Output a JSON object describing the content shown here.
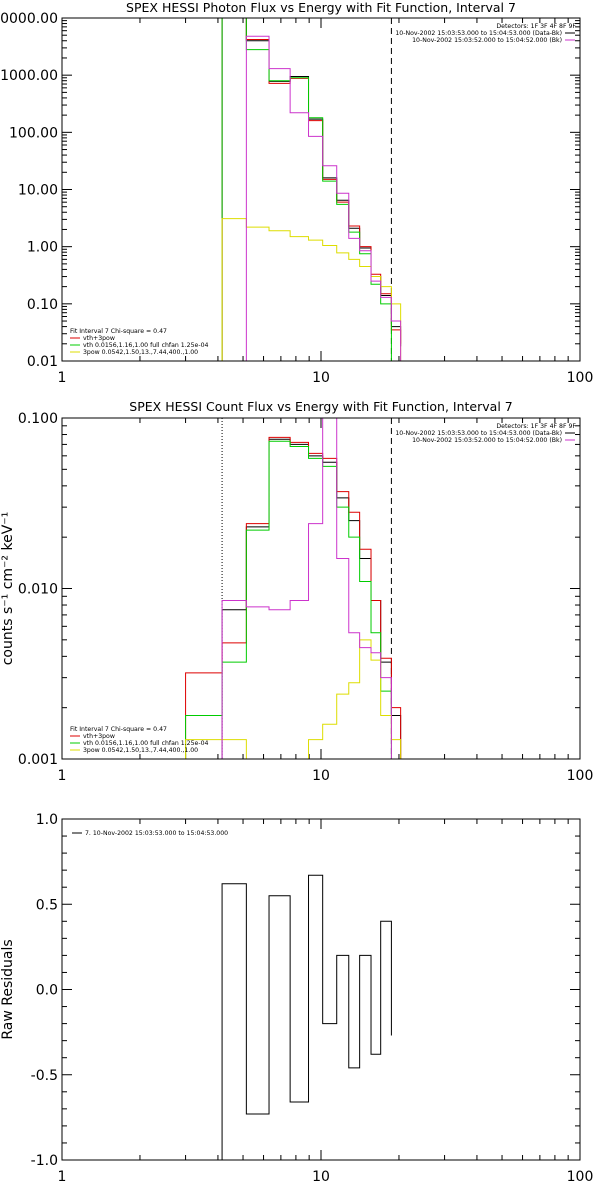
{
  "chart_data": [
    {
      "id": "photon",
      "type": "line",
      "title": "SPEX HESSI Photon Flux vs Energy with Fit Function, Interval 7",
      "xlog": true,
      "ylog": true,
      "xlim": [
        1,
        100
      ],
      "ylim": [
        0.01,
        10000
      ],
      "x_ticks": [
        "1",
        "10",
        "100"
      ],
      "y_ticks": [
        "0.01",
        "0.10",
        "1.00",
        "10.00",
        "100.00",
        "1000.00",
        "10000.00"
      ],
      "y_tick_values": [
        0.01,
        0.1,
        1,
        10,
        100,
        1000,
        10000
      ],
      "detectors_label": "Detectors: 1F 3F 4F 8F 9F",
      "legend_top": [
        {
          "text": "10-Nov-2002 15:03:53.000 to 15:04:53.000 (Data-Bk)",
          "color": "#000000"
        },
        {
          "text": "10-Nov-2002 15:03:52.000 to 15:04:52.000 (Bk)",
          "color": "#cc33cc"
        }
      ],
      "legend_bottom_title": "Fit Interval 7   Chi-square = 0.47",
      "legend_bottom": [
        {
          "text": "vth+3pow",
          "color": "#dd0000"
        },
        {
          "text": "vth 0.0156,1.16,1.00  full chfan 1.25e-04",
          "color": "#00cc00"
        },
        {
          "text": "3pow 0.0542,1.50,13.,7.44,400.,1.00",
          "color": "#dddd00"
        }
      ],
      "vlines": [
        {
          "x": 4.15,
          "style": "solid",
          "color": "#cc33cc"
        },
        {
          "x": 18.7,
          "style": "dashed",
          "color": "#000000"
        }
      ],
      "bin_edges": [
        3.0,
        4.15,
        5.15,
        6.3,
        7.6,
        8.95,
        10.15,
        11.5,
        12.8,
        14.1,
        15.6,
        17.0,
        18.7,
        20.3
      ],
      "series": [
        {
          "name": "Data-Bk",
          "color": "#000000",
          "values": [
            null,
            10000,
            4000,
            780,
            950,
            170,
            16,
            6.5,
            2.1,
            0.95,
            0.3,
            0.14,
            0.04,
            0.018
          ]
        },
        {
          "name": "vth+3pow",
          "color": "#dd0000",
          "values": [
            null,
            10000,
            4200,
            720,
            880,
            160,
            15,
            6.0,
            2.3,
            1.0,
            0.33,
            0.15,
            0.035,
            0.02
          ]
        },
        {
          "name": "vth",
          "color": "#00cc00",
          "values": [
            null,
            10000,
            2800,
            800,
            900,
            180,
            14,
            5.5,
            1.8,
            0.75,
            0.22,
            0.1,
            0.008,
            0.008
          ]
        },
        {
          "name": "3pow",
          "color": "#dddd00",
          "values": [
            null,
            3.1,
            2.2,
            1.9,
            1.5,
            1.3,
            1.05,
            0.78,
            0.6,
            0.45,
            0.3,
            0.2,
            0.1,
            null
          ]
        },
        {
          "name": "Bk",
          "color": "#cc33cc",
          "values": [
            null,
            null,
            4800,
            1300,
            220,
            85,
            26,
            8.6,
            1.4,
            0.85,
            0.25,
            0.13,
            0.05,
            null
          ]
        }
      ]
    },
    {
      "id": "count",
      "type": "line",
      "title": "SPEX HESSI Count Flux vs Energy with Fit Function, Interval 7",
      "ylabel": "counts s⁻¹ cm⁻² keV⁻¹",
      "xlog": true,
      "ylog": true,
      "xlim": [
        1,
        100
      ],
      "ylim": [
        0.001,
        0.1
      ],
      "x_ticks": [
        "1",
        "10",
        "100"
      ],
      "y_ticks": [
        "0.001",
        "0.010",
        "0.100"
      ],
      "y_tick_values": [
        0.001,
        0.01,
        0.1
      ],
      "detectors_label": "Detectors: 1F 3F 4F 8F 9F",
      "legend_top": [
        {
          "text": "10-Nov-2002 15:03:53.000 to 15:04:53.000 (Data-Bk)",
          "color": "#000000"
        },
        {
          "text": "10-Nov-2002 15:03:52.000 to 15:04:52.000 (Bk)",
          "color": "#cc33cc"
        }
      ],
      "legend_bottom_title": "Fit Interval 7   Chi-square = 0.47",
      "legend_bottom": [
        {
          "text": "vth+3pow",
          "color": "#dd0000"
        },
        {
          "text": "vth 0.0156,1.16,1.00  full chfan 1.25e-04",
          "color": "#00cc00"
        },
        {
          "text": "3pow 0.0542,1.50,13.,7.44,400.,1.00",
          "color": "#dddd00"
        }
      ],
      "vlines": [
        {
          "x": 4.15,
          "style": "dotted",
          "color": "#000000"
        },
        {
          "x": 18.7,
          "style": "dashed",
          "color": "#000000"
        }
      ],
      "bin_edges": [
        3.0,
        4.15,
        5.15,
        6.3,
        7.6,
        8.95,
        10.15,
        11.5,
        12.8,
        14.1,
        15.6,
        17.0,
        18.7,
        20.3
      ],
      "series": [
        {
          "name": "Data-Bk",
          "color": "#000000",
          "values": [
            null,
            0.0075,
            0.023,
            0.075,
            0.07,
            0.06,
            0.055,
            0.034,
            0.025,
            0.015,
            0.0085,
            0.0037,
            0.0018,
            null
          ]
        },
        {
          "name": "vth+3pow",
          "color": "#dd0000",
          "values": [
            0.0032,
            0.0048,
            0.024,
            0.077,
            0.072,
            0.062,
            0.058,
            0.037,
            0.028,
            0.017,
            0.0085,
            0.0039,
            0.002,
            null
          ]
        },
        {
          "name": "vth",
          "color": "#00cc00",
          "values": [
            0.0018,
            0.0037,
            0.022,
            0.073,
            0.068,
            0.058,
            0.052,
            0.03,
            0.02,
            0.011,
            0.0055,
            0.0025,
            0.001,
            null
          ]
        },
        {
          "name": "3pow",
          "color": "#dddd00",
          "values": [
            0.0013,
            0.0013,
            0.001,
            0.001,
            0.001,
            0.0013,
            0.0016,
            0.0024,
            0.0028,
            0.005,
            0.0038,
            0.0018,
            0.0013,
            null
          ]
        },
        {
          "name": "Bk",
          "color": "#cc33cc",
          "values": [
            null,
            0.0085,
            0.0078,
            0.0075,
            0.0085,
            0.024,
            0.1,
            0.015,
            0.0055,
            0.0045,
            0.0042,
            0.003,
            null,
            null
          ]
        }
      ]
    },
    {
      "id": "residuals",
      "type": "line",
      "ylabel": "Raw Residuals",
      "xlog": true,
      "ylog": false,
      "xlim": [
        1,
        100
      ],
      "ylim": [
        -1.0,
        1.0
      ],
      "x_ticks": [
        "1",
        "10",
        "100"
      ],
      "y_ticks": [
        "-1.0",
        "-0.5",
        "0.0",
        "0.5",
        "1.0"
      ],
      "y_tick_values": [
        -1.0,
        -0.5,
        0.0,
        0.5,
        1.0
      ],
      "legend_top_left": "7. 10-Nov-2002 15:03:53.000 to 15:04:53.000",
      "bin_edges": [
        4.15,
        5.15,
        6.3,
        7.6,
        8.95,
        10.15,
        11.5,
        12.8,
        14.1,
        15.6,
        17.0,
        18.7
      ],
      "series": [
        {
          "name": "",
          "color": "#000000",
          "values": [
            0.62,
            -0.73,
            0.55,
            -0.66,
            0.67,
            -0.2,
            0.2,
            -0.46,
            0.2,
            -0.38,
            0.4,
            -0.27
          ]
        }
      ]
    }
  ]
}
